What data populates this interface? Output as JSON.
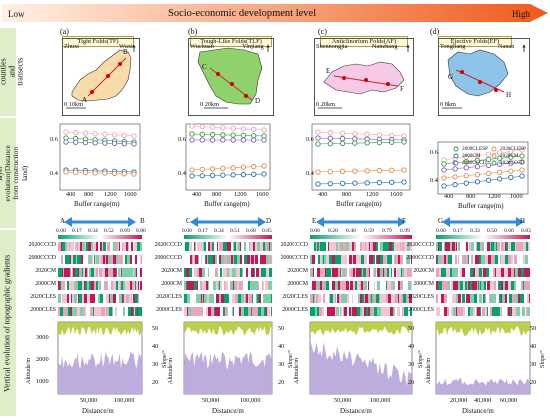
{
  "header": {
    "low": "Low",
    "title": "Socio-economic development level",
    "high": "High"
  },
  "row_labels": {
    "row1": "Typical counties and transects",
    "row2": "Horizontal circle layer evolution(Distance from construction land)",
    "row3": "Vertical evolution of topographic gradients"
  },
  "panels": [
    {
      "letter": "(a)",
      "title": "Tight Folds(TF)",
      "left_county": "Zhuxi",
      "right_county": "Wuxi",
      "scale": "0  10km",
      "A": "A",
      "B": "B",
      "end_left": "A",
      "end_right": "B",
      "ticks": [
        "0.00",
        "0.17",
        "0.34",
        "0.52",
        "0.69",
        "0.86"
      ]
    },
    {
      "letter": "(b)",
      "title": "Tough-Like Folds(TLF)",
      "left_county": "Wuchuan",
      "right_county": "Yinjiang",
      "scale": "0     20km",
      "A": "C",
      "B": "D",
      "end_left": "C",
      "end_right": "D",
      "ticks": [
        "0.00",
        "0.17",
        "0.34",
        "0.51",
        "0.68",
        "0.85"
      ]
    },
    {
      "letter": "(c)",
      "title": "Anticlinorium Folds(AF)",
      "left_county": "Shennongjia",
      "right_county": "Nanzhang",
      "scale": "0     20km",
      "A": "E",
      "B": "F",
      "end_left": "E",
      "end_right": "F",
      "ticks": [
        "0.00",
        "0.20",
        "0.40",
        "0.59",
        "0.79",
        "0.99"
      ]
    },
    {
      "letter": "(d)",
      "title": "Ejective Folds(EF)",
      "left_county": "Tongliang",
      "right_county": "Nanan",
      "scale": "0    8km",
      "A": "G",
      "B": "H",
      "end_left": "G",
      "end_right": "H",
      "ticks": [
        "0.00",
        "0.17",
        "0.33",
        "0.50",
        "0.66",
        "0.83"
      ]
    }
  ],
  "heatmap_rows": [
    "2020CCCD",
    "2000CCCD",
    "2020CM",
    "2000CM",
    "2020CLES",
    "2000CLES"
  ],
  "buffer": {
    "xlabel": "Buffer range(m)",
    "ticks": [
      "400",
      "800",
      "1200",
      "1600"
    ],
    "y_ticks_abc": [
      "0.4",
      "0.6"
    ],
    "y_ticks_d": [
      "0.4",
      "0.6"
    ]
  },
  "legend": [
    "2000CLESP",
    "2020CLESP",
    "2000CM",
    "2020CM",
    "2000CCCD",
    "2020CCCD"
  ],
  "profile": {
    "alt_label": "Altitude/m",
    "slope_label": "Slope/°",
    "xlabel": "Distance/m",
    "alt_ticks": [
      "3000",
      "2000",
      "1000"
    ],
    "slope_ticks": [
      "50",
      "40",
      "30",
      "20"
    ],
    "alt_ticks_d": [
      "3000",
      "2000",
      "1000"
    ],
    "x_ticks_a": [
      "50,000",
      "100,000"
    ],
    "x_ticks_b": [
      "50,000",
      "100,000"
    ],
    "x_ticks_c": [
      "50,000",
      "100,000"
    ],
    "x_ticks_d": [
      "20,000",
      "40,000",
      "60,000"
    ]
  },
  "colors": {
    "green": "#00a36c",
    "pink": "#c2185b",
    "light_pink": "#f3c5d6",
    "lavender": "#b9a9dc",
    "olive": "#b5c93a",
    "tf_fill": "#f7dcaa",
    "tlf_fill": "#8fd16a",
    "af_fill": "#f7c9e6",
    "ef_fill": "#8ec3ea",
    "arrow_blue": "#2f8ae0",
    "label_bg": "#dfeec8"
  }
}
